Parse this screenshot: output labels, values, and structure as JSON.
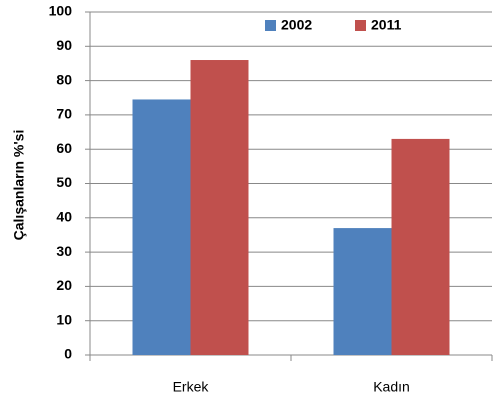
{
  "chart_data": {
    "type": "bar",
    "y_label": "Çalışanların %'si",
    "categories": [
      "Erkek",
      "Kadın"
    ],
    "series": [
      {
        "name": "2002",
        "color": "#4f81bd",
        "values": [
          74.5,
          37
        ]
      },
      {
        "name": "2011",
        "color": "#c0504d",
        "values": [
          86,
          63
        ]
      }
    ],
    "ylim": [
      0,
      100
    ],
    "yticks": [
      0,
      10,
      20,
      30,
      40,
      50,
      60,
      70,
      80,
      90,
      100
    ],
    "grid": true,
    "legend": "top"
  }
}
